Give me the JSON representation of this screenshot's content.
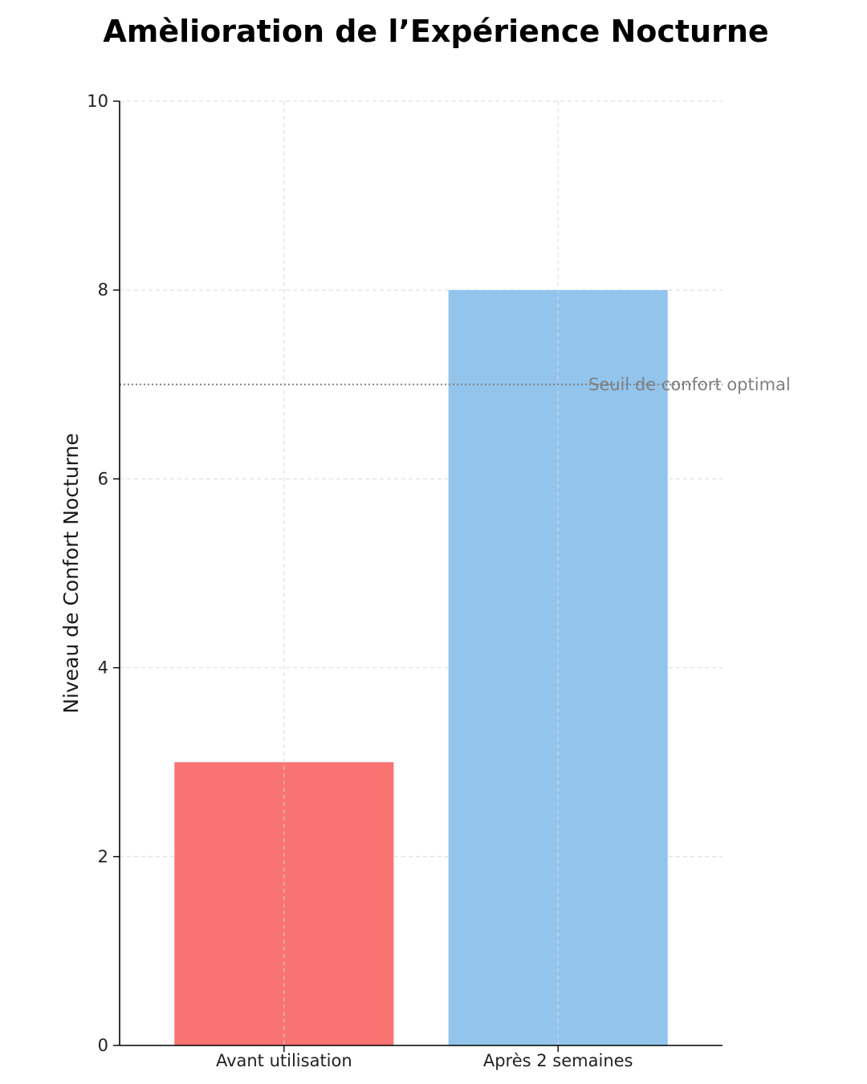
{
  "chart_data": {
    "type": "bar",
    "title": "Amèlioration de l’Expérience Nocturne",
    "xlabel": "",
    "ylabel": "Niveau de Confort Nocturne",
    "categories": [
      "Avant utilisation",
      "Après 2 semaines"
    ],
    "values": [
      3,
      8
    ],
    "colors": [
      "#f87371",
      "#92c4ec"
    ],
    "ylim": [
      0,
      10
    ],
    "yticks": [
      0,
      2,
      4,
      6,
      8,
      10
    ],
    "grid": true,
    "legend": "none",
    "threshold": {
      "value": 7,
      "label": "Seuil de confort optimal",
      "color": "#808080"
    }
  }
}
